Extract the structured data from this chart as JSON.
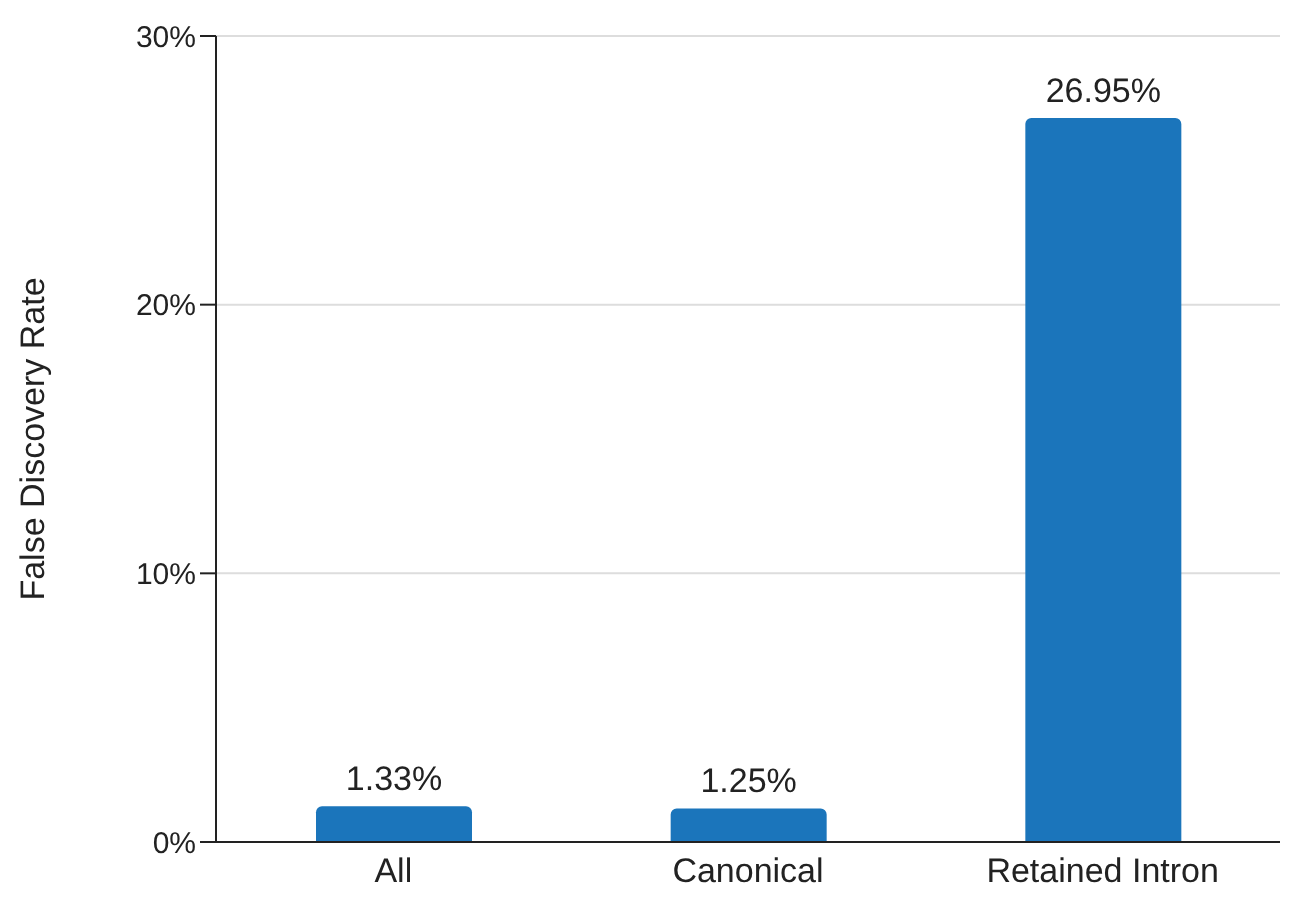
{
  "chart_data": {
    "type": "bar",
    "ylabel": "False Discovery Rate",
    "categories": [
      "All",
      "Canonical",
      "Retained Intron"
    ],
    "values": [
      1.33,
      1.25,
      26.95
    ],
    "color": "#1b75bb",
    "value_labels": [
      "1.33%",
      "1.25%",
      "26.95%"
    ],
    "ylim": [
      0,
      30
    ],
    "yticks": [
      {
        "value": 0,
        "label": "0%"
      },
      {
        "value": 10,
        "label": "10%"
      },
      {
        "value": 20,
        "label": "20%"
      },
      {
        "value": 30,
        "label": "30%"
      }
    ],
    "grid": "y"
  }
}
